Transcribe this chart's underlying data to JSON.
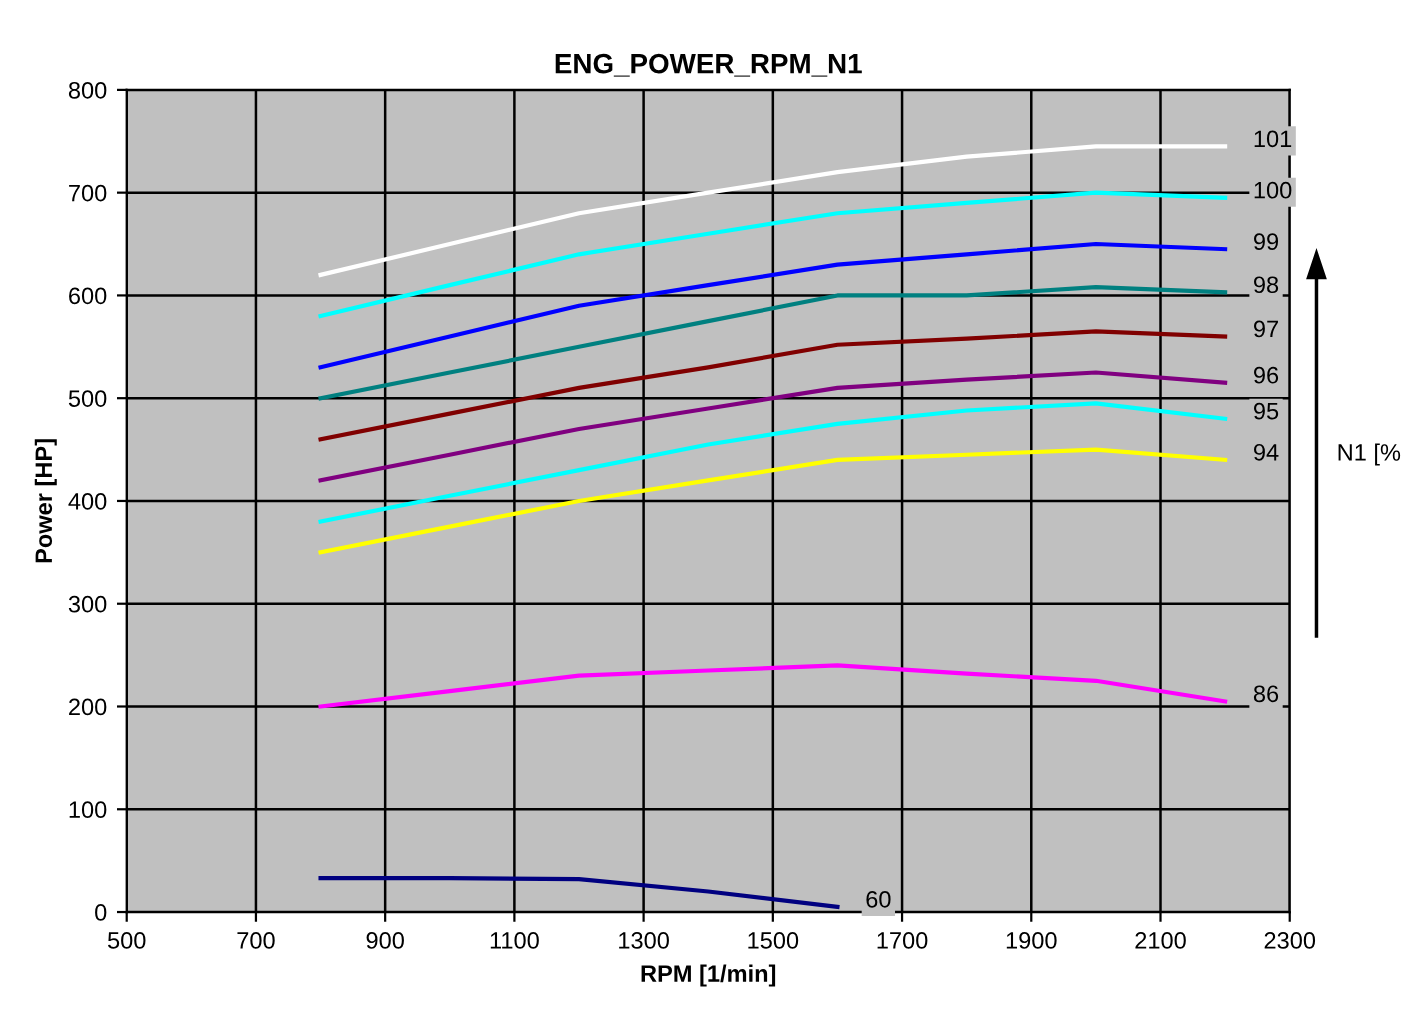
{
  "chart_data": {
    "type": "line",
    "title": "ENG_POWER_RPM_N1",
    "xlabel": "RPM [1/min]",
    "ylabel": "Power [HP]",
    "x": [
      800,
      1000,
      1200,
      1400,
      1600,
      1800,
      2000,
      2200
    ],
    "series": [
      {
        "name": "101",
        "color": "#ffffff",
        "values": [
          620,
          650,
          680,
          700,
          720,
          735,
          745,
          745
        ]
      },
      {
        "name": "100",
        "color": "#00ffff",
        "values": [
          580,
          610,
          640,
          660,
          680,
          690,
          700,
          695
        ]
      },
      {
        "name": "99",
        "color": "#0000ff",
        "values": [
          530,
          560,
          590,
          610,
          630,
          640,
          650,
          645
        ]
      },
      {
        "name": "98",
        "color": "#008080",
        "values": [
          500,
          525,
          550,
          575,
          600,
          600,
          608,
          603
        ]
      },
      {
        "name": "97",
        "color": "#800000",
        "values": [
          460,
          485,
          510,
          530,
          552,
          558,
          565,
          560
        ]
      },
      {
        "name": "96",
        "color": "#800080",
        "values": [
          420,
          445,
          470,
          490,
          510,
          518,
          525,
          515
        ]
      },
      {
        "name": "95",
        "color": "#00ffff",
        "values": [
          380,
          405,
          430,
          455,
          475,
          488,
          495,
          480
        ]
      },
      {
        "name": "94",
        "color": "#ffff00",
        "values": [
          350,
          375,
          400,
          420,
          440,
          445,
          450,
          440
        ]
      },
      {
        "name": "86",
        "color": "#ff00ff",
        "values": [
          200,
          215,
          230,
          235,
          240,
          232,
          225,
          205
        ]
      },
      {
        "name": "60",
        "color": "#000080",
        "x": [
          800,
          1000,
          1200,
          1400,
          1600
        ],
        "values": [
          33,
          33,
          32,
          20,
          5
        ]
      }
    ],
    "xlim": [
      500,
      2300
    ],
    "xticks": [
      500,
      700,
      900,
      1100,
      1300,
      1500,
      1700,
      1900,
      2100,
      2300
    ],
    "ylim": [
      0,
      800
    ],
    "yticks": [
      0,
      100,
      200,
      300,
      400,
      500,
      600,
      700,
      800
    ],
    "grid": true,
    "legend": false,
    "marker": "none",
    "line_style": "solid",
    "annotations": [
      "N1 [%"
    ]
  }
}
